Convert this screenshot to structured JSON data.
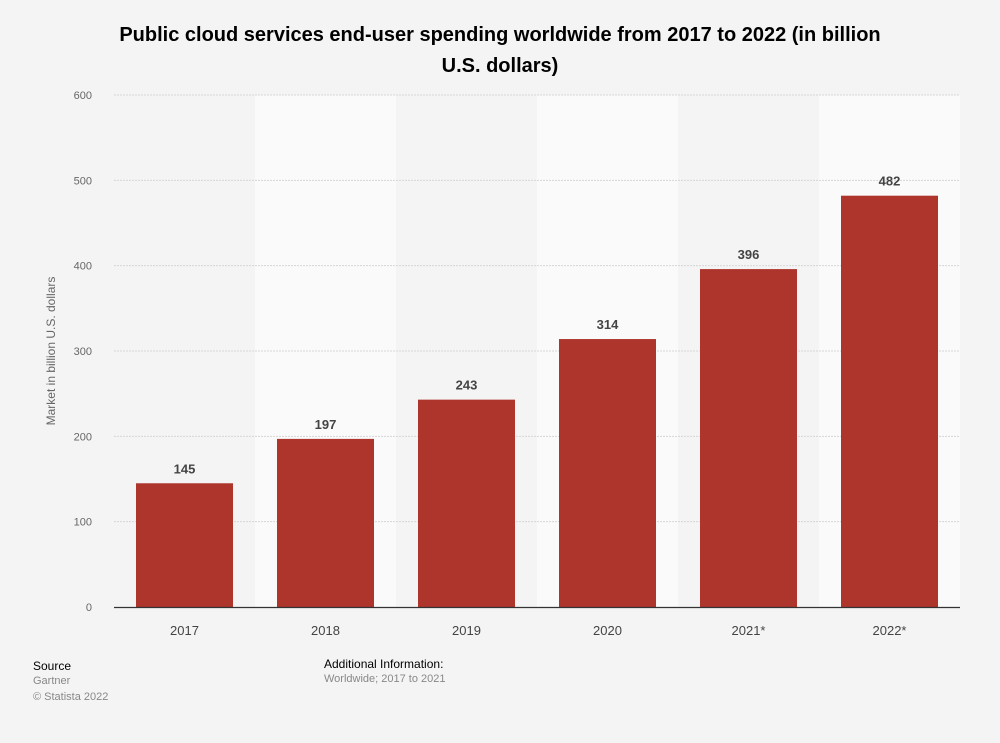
{
  "chart_data": {
    "type": "bar",
    "title": "Public cloud services end-user spending worldwide from 2017 to 2022 (in billion U.S. dollars)",
    "xlabel": "",
    "ylabel": "Market in billion U.S. dollars",
    "categories": [
      "2017",
      "2018",
      "2019",
      "2020",
      "2021*",
      "2022*"
    ],
    "values": [
      145,
      197,
      243,
      314,
      396,
      482
    ],
    "ylim": [
      0,
      600
    ],
    "yticks": [
      0,
      100,
      200,
      300,
      400,
      500,
      600
    ],
    "grid": true,
    "data_labels": true,
    "colors": {
      "bar": "#ae352c",
      "band_light": "#fafafa",
      "band_dark": "#f4f4f4",
      "grid": "#d6d6d6"
    }
  },
  "footer": {
    "source_label": "Source",
    "source_value": "Gartner",
    "copyright": "© Statista 2022",
    "additional_label": "Additional Information:",
    "additional_value": "Worldwide; 2017 to 2021"
  }
}
